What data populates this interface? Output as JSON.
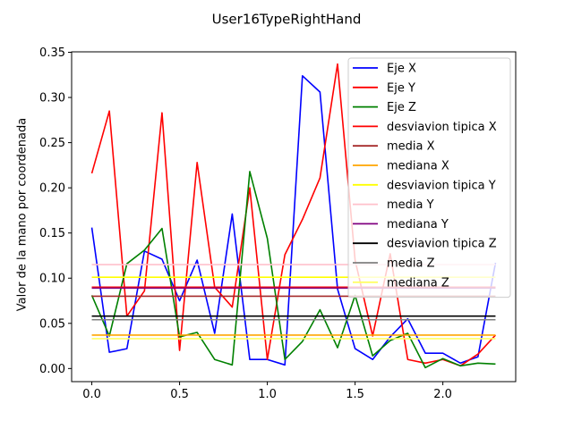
{
  "chart_data": {
    "type": "line",
    "title": "User16TypeRightHand",
    "xlabel": "",
    "ylabel": "Valor de la mano por coordenada",
    "xlim": [
      -0.115,
      2.415
    ],
    "ylim": [
      -0.0145,
      0.3505
    ],
    "xticks": [
      0.0,
      0.5,
      1.0,
      1.5,
      2.0
    ],
    "xtick_labels": [
      "0.0",
      "0.5",
      "1.0",
      "1.5",
      "2.0"
    ],
    "yticks": [
      0.0,
      0.05,
      0.1,
      0.15,
      0.2,
      0.25,
      0.3,
      0.35
    ],
    "ytick_labels": [
      "0.00",
      "0.05",
      "0.10",
      "0.15",
      "0.20",
      "0.25",
      "0.30",
      "0.35"
    ],
    "grid": false,
    "legend_position": "top-right",
    "x": [
      0.0,
      0.1,
      0.2,
      0.3,
      0.4,
      0.5,
      0.6,
      0.7,
      0.8,
      0.9,
      1.0,
      1.1,
      1.2,
      1.3,
      1.4,
      1.5,
      1.6,
      1.7,
      1.8,
      1.9,
      2.0,
      2.1,
      2.2,
      2.3
    ],
    "series": [
      {
        "name": "Eje X",
        "color": "#0000ff",
        "values": [
          0.156,
          0.018,
          0.022,
          0.13,
          0.121,
          0.075,
          0.12,
          0.039,
          0.171,
          0.01,
          0.01,
          0.004,
          0.324,
          0.306,
          0.088,
          0.022,
          0.01,
          0.035,
          0.055,
          0.017,
          0.017,
          0.006,
          0.013,
          0.117
        ]
      },
      {
        "name": "Eje Y",
        "color": "#ff0000",
        "values": [
          0.216,
          0.285,
          0.058,
          0.086,
          0.283,
          0.02,
          0.228,
          0.09,
          0.068,
          0.2,
          0.01,
          0.126,
          0.165,
          0.211,
          0.337,
          0.12,
          0.036,
          0.127,
          0.01,
          0.006,
          0.01,
          0.003,
          0.016,
          0.037
        ]
      },
      {
        "name": "Eje Z",
        "color": "#008000",
        "values": [
          0.081,
          0.036,
          0.116,
          0.131,
          0.155,
          0.035,
          0.04,
          0.01,
          0.004,
          0.218,
          0.144,
          0.01,
          0.03,
          0.065,
          0.023,
          0.081,
          0.014,
          0.031,
          0.039,
          0.001,
          0.011,
          0.003,
          0.006,
          0.005
        ]
      },
      {
        "name": "desviavion tipica X",
        "color": "#ff0000",
        "constant": 0.09
      },
      {
        "name": "media X",
        "color": "#a52a2a",
        "constant": 0.08
      },
      {
        "name": "mediana X",
        "color": "#ffa500",
        "constant": 0.037
      },
      {
        "name": "desviavion tipica Y",
        "color": "#ffff00",
        "constant": 0.101
      },
      {
        "name": "media Y",
        "color": "#ffc0cb",
        "constant": 0.115
      },
      {
        "name": "mediana Y",
        "color": "#800080",
        "constant": 0.089
      },
      {
        "name": "desviavion tipica Z",
        "color": "#000000",
        "constant": 0.058
      },
      {
        "name": "media Z",
        "color": "#808080",
        "constant": 0.054
      },
      {
        "name": "mediana Z",
        "color": "#ffff66",
        "constant": 0.033
      }
    ]
  }
}
